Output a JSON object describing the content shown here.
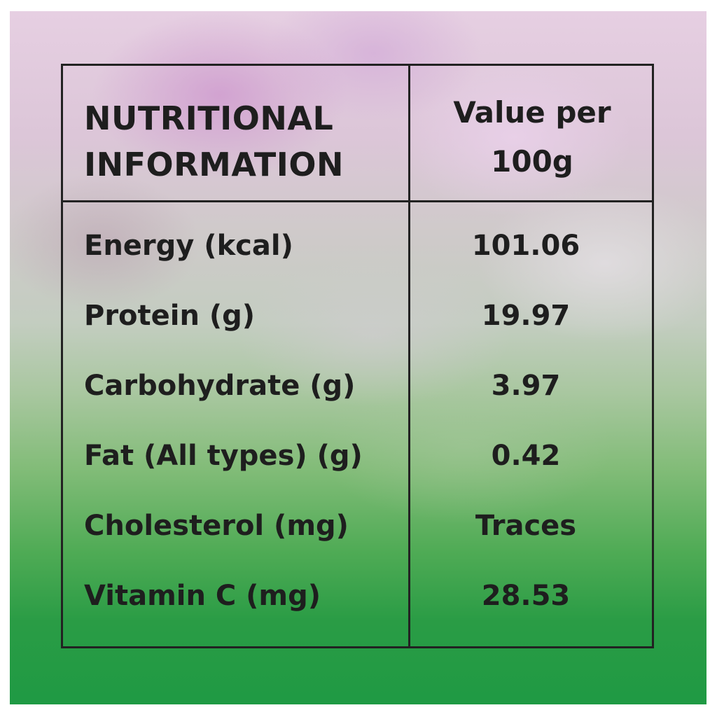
{
  "table": {
    "header": {
      "label_line1": "NUTRITIONAL",
      "label_line2": "INFORMATION",
      "value_line1": "Value per",
      "value_line2": "100g"
    },
    "rows": [
      {
        "label": "Energy (kcal)",
        "value": "101.06"
      },
      {
        "label": "Protein (g)",
        "value": "19.97"
      },
      {
        "label": "Carbohydrate (g)",
        "value": "3.97"
      },
      {
        "label": "Fat (All types) (g)",
        "value": "0.42"
      },
      {
        "label": "Cholesterol (mg)",
        "value": "Traces"
      },
      {
        "label": "Vitamin C (mg)",
        "value": "28.53"
      }
    ]
  },
  "colors": {
    "text": "#1e1e1e",
    "border": "#222222",
    "background_top": "#e6cfe2",
    "background_bottom": "#1f9a44"
  }
}
